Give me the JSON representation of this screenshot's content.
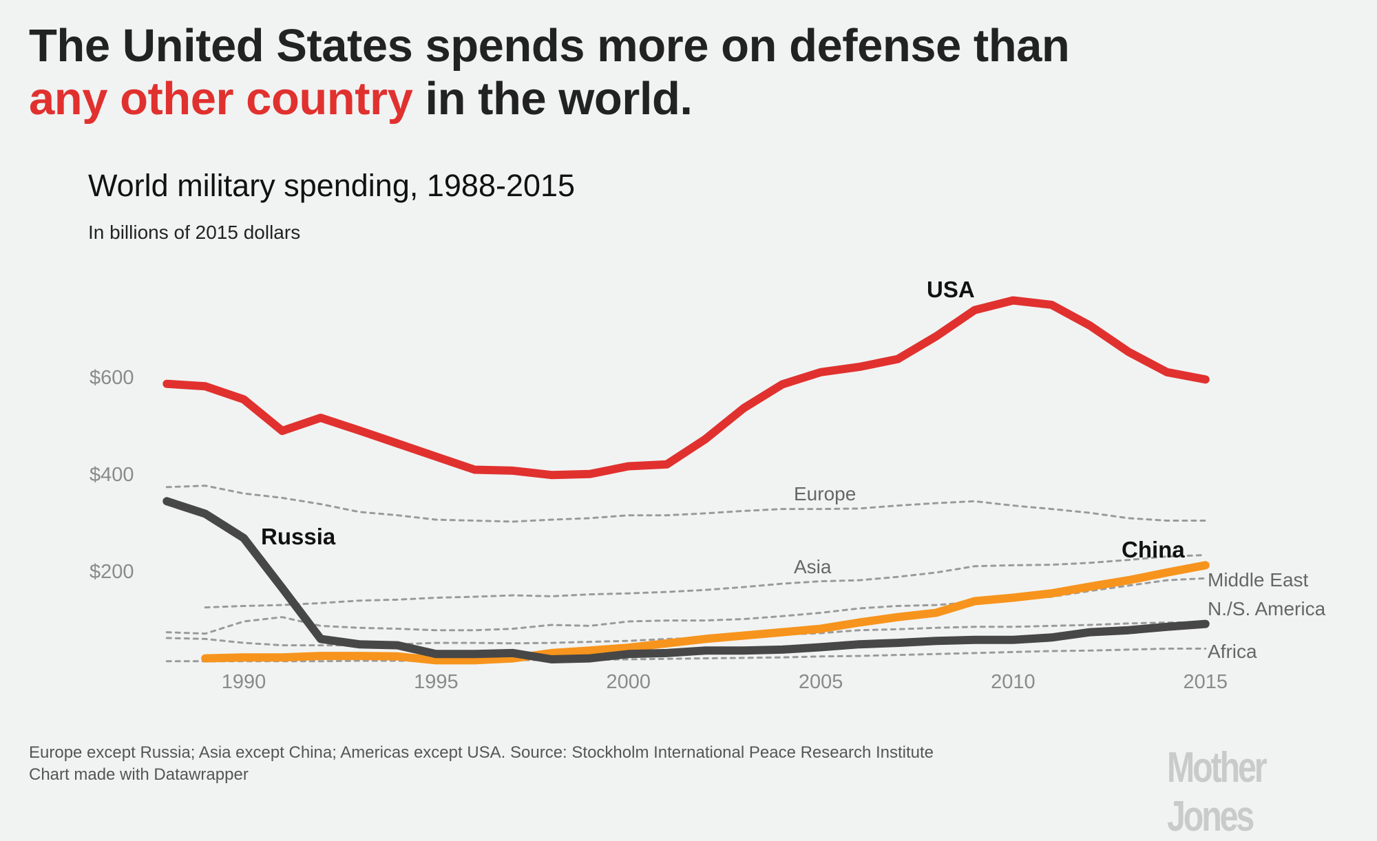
{
  "headline": {
    "line1": "The United States spends more on defense than",
    "highlight": "any other country",
    "line2_rest": " in the world."
  },
  "chart_data": {
    "type": "line",
    "title": "World military spending, 1988-2015",
    "subtitle": "In billions of 2015 dollars",
    "x": [
      1988,
      1989,
      1990,
      1991,
      1992,
      1993,
      1994,
      1995,
      1996,
      1997,
      1998,
      1999,
      2000,
      2001,
      2002,
      2003,
      2004,
      2005,
      2006,
      2007,
      2008,
      2009,
      2010,
      2011,
      2012,
      2013,
      2014,
      2015
    ],
    "xticks": [
      "1990",
      "1995",
      "2000",
      "2005",
      "2010",
      "2015"
    ],
    "yticks": [
      "$200",
      "$400",
      "$600"
    ],
    "ylim": [
      0,
      760
    ],
    "grid": false,
    "series": [
      {
        "name": "Europe",
        "style": "dotted",
        "color": "#9a9a9a",
        "values": [
          373,
          376,
          360,
          351,
          338,
          322,
          315,
          306,
          304,
          302,
          306,
          309,
          315,
          315,
          319,
          324,
          328,
          328,
          329,
          335,
          340,
          344,
          335,
          328,
          320,
          309,
          304,
          304
        ]
      },
      {
        "name": "Asia",
        "style": "dotted",
        "color": "#9a9a9a",
        "values": [
          null,
          125,
          128,
          130,
          134,
          139,
          141,
          145,
          147,
          150,
          148,
          152,
          154,
          157,
          161,
          167,
          174,
          179,
          181,
          188,
          197,
          210,
          212,
          213,
          217,
          223,
          230,
          233
        ]
      },
      {
        "name": "Middle East",
        "style": "dotted",
        "color": "#9a9a9a",
        "values": [
          74,
          71,
          96,
          105,
          87,
          83,
          81,
          78,
          78,
          81,
          89,
          87,
          96,
          98,
          98,
          101,
          107,
          114,
          123,
          128,
          130,
          136,
          143,
          147,
          159,
          170,
          181,
          185
        ]
      },
      {
        "name": "N./S. America",
        "style": "dotted",
        "color": "#9a9a9a",
        "values": [
          62,
          60,
          52,
          47,
          47,
          47,
          49,
          52,
          52,
          51,
          52,
          54,
          56,
          60,
          62,
          65,
          69,
          72,
          78,
          80,
          83,
          85,
          85,
          87,
          89,
          92,
          94,
          94
        ]
      },
      {
        "name": "Africa",
        "style": "dotted",
        "color": "#9a9a9a",
        "values": [
          14,
          14,
          14,
          14,
          14,
          15,
          15,
          15,
          16,
          16,
          17,
          17,
          18,
          19,
          20,
          21,
          22,
          24,
          25,
          27,
          29,
          31,
          33,
          35,
          36,
          38,
          40,
          40
        ]
      },
      {
        "name": "China",
        "style": "solid",
        "color": "#f7941d",
        "values": [
          null,
          20,
          22,
          22,
          25,
          25,
          24,
          16,
          16,
          20,
          31,
          36,
          42,
          51,
          60,
          67,
          74,
          81,
          94,
          105,
          114,
          138,
          145,
          154,
          168,
          181,
          197,
          212
        ]
      },
      {
        "name": "Russia",
        "style": "solid",
        "color": "#474747",
        "values": [
          344,
          318,
          268,
          165,
          60,
          49,
          47,
          29,
          29,
          31,
          18,
          20,
          29,
          31,
          36,
          36,
          38,
          43,
          49,
          52,
          56,
          58,
          58,
          63,
          74,
          78,
          85,
          91
        ]
      },
      {
        "name": "USA",
        "style": "solid",
        "color": "#e0312f",
        "values": [
          586,
          581,
          554,
          489,
          516,
          490,
          463,
          436,
          409,
          407,
          398,
          400,
          416,
          420,
          472,
          536,
          585,
          610,
          621,
          637,
          684,
          738,
          758,
          749,
          706,
          652,
          610,
          595
        ]
      }
    ]
  },
  "footer": {
    "note": "Europe except Russia; Asia except China; Americas except USA. Source: Stockholm International Peace Research Institute",
    "credit": "Chart made with Datawrapper",
    "logo": "MotherJones"
  }
}
